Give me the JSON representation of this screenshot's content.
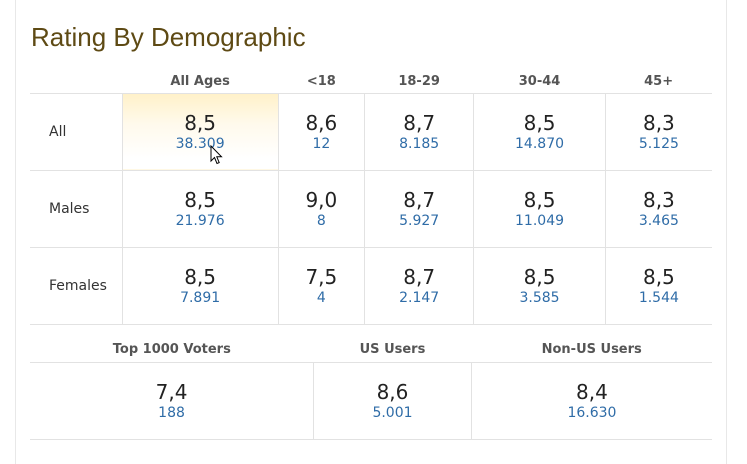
{
  "title": "Rating By Demographic",
  "columns": [
    "All Ages",
    "<18",
    "18-29",
    "30-44",
    "45+"
  ],
  "rows": [
    {
      "label": "All",
      "cells": [
        {
          "score": "8,5",
          "votes": "38.309"
        },
        {
          "score": "8,6",
          "votes": "12"
        },
        {
          "score": "8,7",
          "votes": "8.185"
        },
        {
          "score": "8,5",
          "votes": "14.870"
        },
        {
          "score": "8,3",
          "votes": "5.125"
        }
      ]
    },
    {
      "label": "Males",
      "cells": [
        {
          "score": "8,5",
          "votes": "21.976"
        },
        {
          "score": "9,0",
          "votes": "8"
        },
        {
          "score": "8,7",
          "votes": "5.927"
        },
        {
          "score": "8,5",
          "votes": "11.049"
        },
        {
          "score": "8,3",
          "votes": "3.465"
        }
      ]
    },
    {
      "label": "Females",
      "cells": [
        {
          "score": "8,5",
          "votes": "7.891"
        },
        {
          "score": "7,5",
          "votes": "4"
        },
        {
          "score": "8,7",
          "votes": "2.147"
        },
        {
          "score": "8,5",
          "votes": "3.585"
        },
        {
          "score": "8,5",
          "votes": "1.544"
        }
      ]
    }
  ],
  "extra": {
    "columns": [
      "Top 1000 Voters",
      "US Users",
      "Non-US Users"
    ],
    "cells": [
      {
        "score": "7,4",
        "votes": "188"
      },
      {
        "score": "8,6",
        "votes": "5.001"
      },
      {
        "score": "8,4",
        "votes": "16.630"
      }
    ]
  },
  "colors": {
    "title": "#5e4a14",
    "votes_link": "#2f6ca7",
    "highlight": "#fff1c9"
  }
}
